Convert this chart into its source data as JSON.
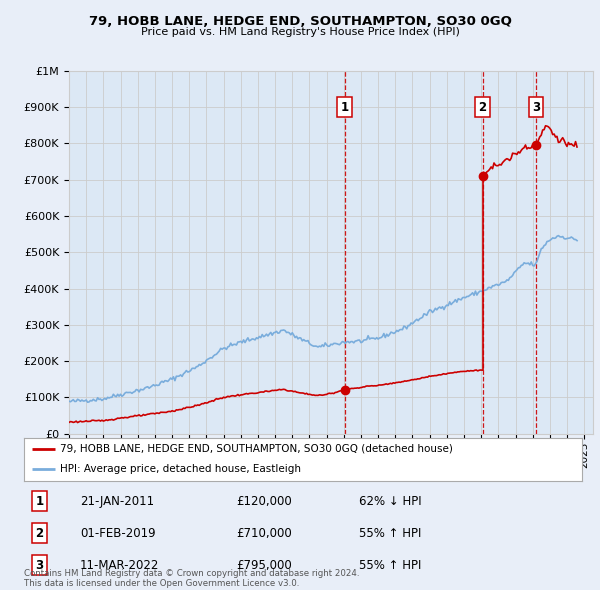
{
  "title": "79, HOBB LANE, HEDGE END, SOUTHAMPTON, SO30 0GQ",
  "subtitle": "Price paid vs. HM Land Registry's House Price Index (HPI)",
  "ylabel_ticks": [
    "£0",
    "£100K",
    "£200K",
    "£300K",
    "£400K",
    "£500K",
    "£600K",
    "£700K",
    "£800K",
    "£900K",
    "£1M"
  ],
  "ytick_values": [
    0,
    100000,
    200000,
    300000,
    400000,
    500000,
    600000,
    700000,
    800000,
    900000,
    1000000
  ],
  "ylim": [
    0,
    1000000
  ],
  "xlim_start": 1995,
  "xlim_end": 2025.5,
  "hpi_color": "#7aaddc",
  "price_color": "#cc0000",
  "sale_marker_color": "#cc0000",
  "vline_color": "#cc0000",
  "grid_color": "#cccccc",
  "bg_color": "#e8eef8",
  "plot_bg": "#dce8f5",
  "legend_border_color": "#aaaaaa",
  "legend_label_price": "79, HOBB LANE, HEDGE END, SOUTHAMPTON, SO30 0GQ (detached house)",
  "legend_label_hpi": "HPI: Average price, detached house, Eastleigh",
  "sale1_x": 2011.05,
  "sale1_y": 120000,
  "sale2_x": 2019.08,
  "sale2_y": 710000,
  "sale3_x": 2022.2,
  "sale3_y": 795000,
  "table_entries": [
    {
      "num": "1",
      "date": "21-JAN-2011",
      "price": "£120,000",
      "hpi_rel": "62% ↓ HPI"
    },
    {
      "num": "2",
      "date": "01-FEB-2019",
      "price": "£710,000",
      "hpi_rel": "55% ↑ HPI"
    },
    {
      "num": "3",
      "date": "11-MAR-2022",
      "price": "£795,000",
      "hpi_rel": "55% ↑ HPI"
    }
  ],
  "footnote": "Contains HM Land Registry data © Crown copyright and database right 2024.\nThis data is licensed under the Open Government Licence v3.0."
}
